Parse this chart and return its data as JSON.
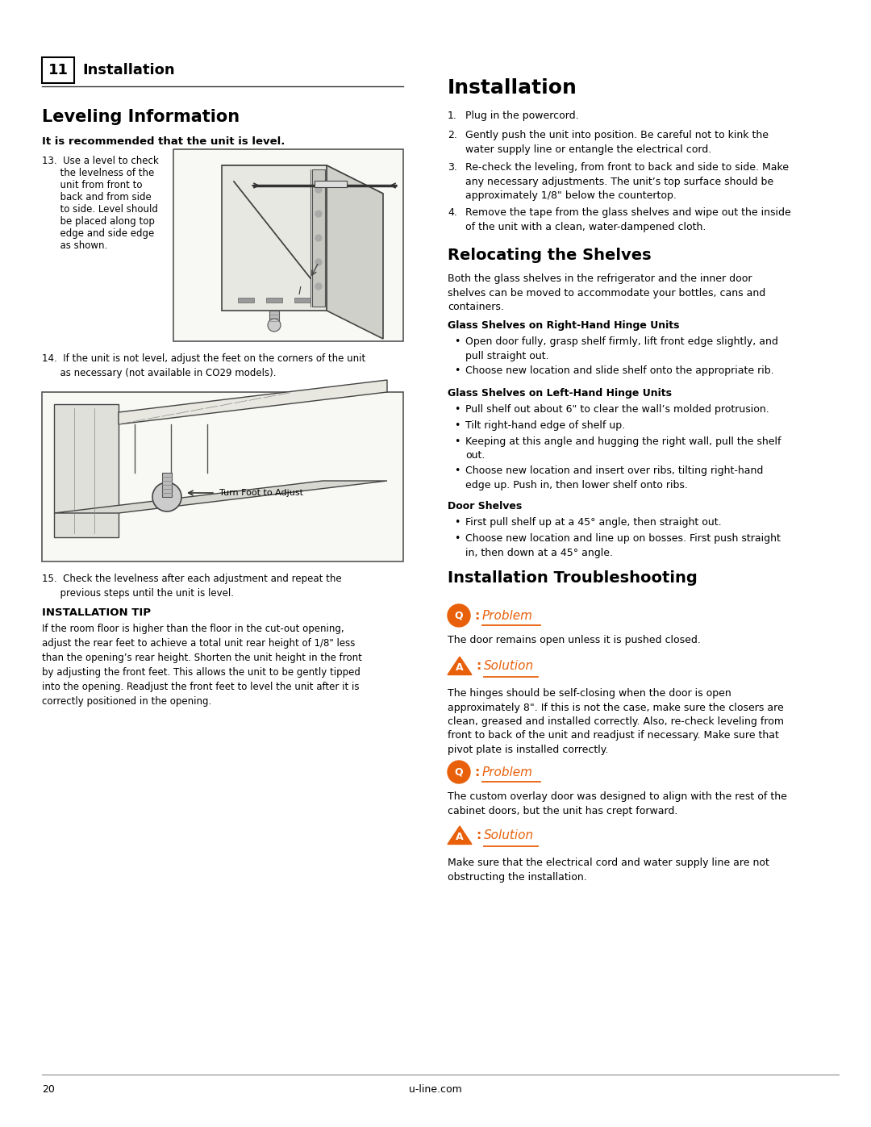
{
  "page_number": "20",
  "website": "u-line.com",
  "bg_color": "#ffffff",
  "text_color": "#000000",
  "header_box_label": "11",
  "header_section": "Installation",
  "orange_color": "#E8600A",
  "left": {
    "leveling_title": "Leveling Information",
    "leveling_bold": "It is recommended that the unit is level.",
    "step13_lines": [
      "13.  Use a level to check",
      "      the levelness of the",
      "      unit from front to",
      "      back and from side",
      "      to side. Level should",
      "      be placed along top",
      "      edge and side edge",
      "      as shown."
    ],
    "step14": "14.  If the unit is not level, adjust the feet on the corners of the unit\n      as necessary (not available in CO29 models).",
    "step15": "15.  Check the levelness after each adjustment and repeat the\n      previous steps until the unit is level.",
    "tip_title": "INSTALLATION TIP",
    "tip_body": "If the room floor is higher than the floor in the cut-out opening,\nadjust the rear feet to achieve a total unit rear height of 1/8\" less\nthan the opening’s rear height. Shorten the unit height in the front\nby adjusting the front feet. This allows the unit to be gently tipped\ninto the opening. Readjust the front feet to level the unit after it is\ncorrectly positioned in the opening."
  },
  "right": {
    "install_title": "Installation",
    "install_steps": [
      {
        "num": "1.",
        "text": "Plug in the powercord."
      },
      {
        "num": "2.",
        "text": "Gently push the unit into position. Be careful not to kink the\nwater supply line or entangle the electrical cord."
      },
      {
        "num": "3.",
        "text": "Re-check the leveling, from front to back and side to side. Make\nany necessary adjustments. The unit’s top surface should be\napproximately 1/8\" below the countertop."
      },
      {
        "num": "4.",
        "text": "Remove the tape from the glass shelves and wipe out the inside\nof the unit with a clean, water-dampened cloth."
      }
    ],
    "relocating_title": "Relocating the Shelves",
    "relocating_intro": "Both the glass shelves in the refrigerator and the inner door\nshelves can be moved to accommodate your bottles, cans and\ncontainers.",
    "glass_right_title": "Glass Shelves on Right-Hand Hinge Units",
    "glass_right_bullets": [
      "Open door fully, grasp shelf firmly, lift front edge slightly, and\npull straight out.",
      "Choose new location and slide shelf onto the appropriate rib."
    ],
    "glass_left_title": "Glass Shelves on Left-Hand Hinge Units",
    "glass_left_bullets": [
      "Pull shelf out about 6\" to clear the wall’s molded protrusion.",
      "Tilt right-hand edge of shelf up.",
      "Keeping at this angle and hugging the right wall, pull the shelf\nout.",
      "Choose new location and insert over ribs, tilting right-hand\nedge up. Push in, then lower shelf onto ribs."
    ],
    "door_title": "Door Shelves",
    "door_bullets": [
      "First pull shelf up at a 45° angle, then straight out.",
      "Choose new location and line up on bosses. First push straight\nin, then down at a 45° angle."
    ],
    "troubleshoot_title": "Installation Troubleshooting",
    "problem1_text": "The door remains open unless it is pushed closed.",
    "solution1_text": "The hinges should be self-closing when the door is open\napproximately 8\". If this is not the case, make sure the closers are\nclean, greased and installed correctly. Also, re-check leveling from\nfront to back of the unit and readjust if necessary. Make sure that\npivot plate is installed correctly.",
    "problem2_text": "The custom overlay door was designed to align with the rest of the\ncabinet doors, but the unit has crept forward.",
    "solution2_text": "Make sure that the electrical cord and water supply line are not\nobstructing the installation."
  }
}
